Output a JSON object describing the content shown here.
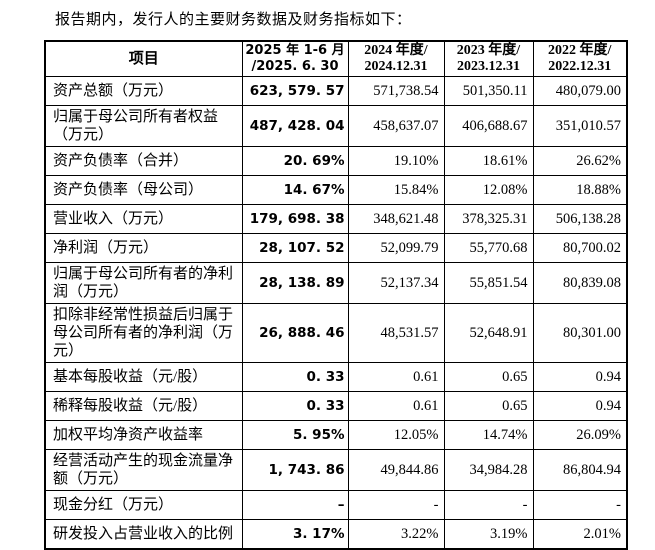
{
  "page": {
    "title": "报告期内，发行人的主要财务数据及财务指标如下："
  },
  "colors": {
    "background": "#ffffff",
    "text": "#000000",
    "border": "#000000"
  },
  "table": {
    "columns": [
      {
        "line1": "项目",
        "line2": ""
      },
      {
        "line1": "2025 年 1-6 月",
        "line2": "/2025. 6. 30"
      },
      {
        "line1": "2024 年度/",
        "line2": "2024.12.31"
      },
      {
        "line1": "2023 年度/",
        "line2": "2023.12.31"
      },
      {
        "line1": "2022 年度/",
        "line2": "2022.12.31"
      }
    ],
    "rows": [
      {
        "item": "资产总额（万元）",
        "v2025": "623, 579. 57",
        "v2024": "571,738.54",
        "v2023": "501,350.11",
        "v2022": "480,079.00"
      },
      {
        "item": "归属于母公司所有者权益（万元）",
        "v2025": "487, 428. 04",
        "v2024": "458,637.07",
        "v2023": "406,688.67",
        "v2022": "351,010.57"
      },
      {
        "item": "资产负债率（合并）",
        "v2025": "20. 69%",
        "v2024": "19.10%",
        "v2023": "18.61%",
        "v2022": "26.62%"
      },
      {
        "item": "资产负债率（母公司）",
        "v2025": "14. 67%",
        "v2024": "15.84%",
        "v2023": "12.08%",
        "v2022": "18.88%"
      },
      {
        "item": "营业收入（万元）",
        "v2025": "179, 698. 38",
        "v2024": "348,621.48",
        "v2023": "378,325.31",
        "v2022": "506,138.28"
      },
      {
        "item": "净利润（万元）",
        "v2025": "28, 107. 52",
        "v2024": "52,099.79",
        "v2023": "55,770.68",
        "v2022": "80,700.02"
      },
      {
        "item": "归属于母公司所有者的净利润（万元）",
        "v2025": "28, 138. 89",
        "v2024": "52,137.34",
        "v2023": "55,851.54",
        "v2022": "80,839.08"
      },
      {
        "item": "扣除非经常性损益后归属于母公司所有者的净利润（万元）",
        "v2025": "26, 888. 46",
        "v2024": "48,531.57",
        "v2023": "52,648.91",
        "v2022": "80,301.00"
      },
      {
        "item": "基本每股收益（元/股）",
        "v2025": "0. 33",
        "v2024": "0.61",
        "v2023": "0.65",
        "v2022": "0.94"
      },
      {
        "item": "稀释每股收益（元/股）",
        "v2025": "0. 33",
        "v2024": "0.61",
        "v2023": "0.65",
        "v2022": "0.94"
      },
      {
        "item": "加权平均净资产收益率",
        "v2025": "5. 95%",
        "v2024": "12.05%",
        "v2023": "14.74%",
        "v2022": "26.09%"
      },
      {
        "item": "经营活动产生的现金流量净额（万元）",
        "v2025": "1, 743. 86",
        "v2024": "49,844.86",
        "v2023": "34,984.28",
        "v2022": "86,804.94"
      },
      {
        "item": "现金分红（万元）",
        "v2025": "–",
        "v2024": "-",
        "v2023": "-",
        "v2022": "-"
      },
      {
        "item": "研发投入占营业收入的比例",
        "v2025": "3. 17%",
        "v2024": "3.22%",
        "v2023": "3.19%",
        "v2022": "2.01%"
      }
    ]
  }
}
